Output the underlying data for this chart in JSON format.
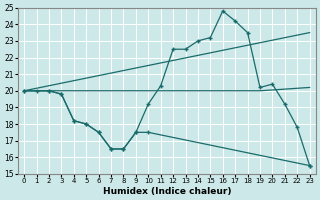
{
  "xlabel": "Humidex (Indice chaleur)",
  "bg_color": "#cce8e8",
  "line_color": "#1a6b6b",
  "grid_color": "#ffffff",
  "xlim": [
    -0.5,
    23.5
  ],
  "ylim": [
    15,
    25
  ],
  "xticks": [
    0,
    1,
    2,
    3,
    4,
    5,
    6,
    7,
    8,
    9,
    10,
    11,
    12,
    13,
    14,
    15,
    16,
    17,
    18,
    19,
    20,
    21,
    22,
    23
  ],
  "yticks": [
    15,
    16,
    17,
    18,
    19,
    20,
    21,
    22,
    23,
    24,
    25
  ],
  "line1_x": [
    0,
    1,
    2,
    3,
    4,
    5,
    6,
    7,
    8,
    9,
    10,
    11,
    12,
    13,
    14,
    15,
    16,
    17,
    18,
    19,
    20,
    21,
    22,
    23
  ],
  "line1_y": [
    20,
    20,
    20,
    19.8,
    18.2,
    18.0,
    17.5,
    16.5,
    16.5,
    17.5,
    19.2,
    20.3,
    22.5,
    22.5,
    23.0,
    23.2,
    24.8,
    24.2,
    23.5,
    20.2,
    20.4,
    19.2,
    17.8,
    15.5
  ],
  "line2_x": [
    0,
    2,
    3,
    4,
    5,
    6,
    7,
    8,
    9,
    10,
    23
  ],
  "line2_y": [
    20,
    20,
    19.8,
    18.2,
    18.0,
    17.5,
    16.5,
    16.5,
    17.5,
    17.5,
    15.5
  ],
  "line3_x": [
    0,
    23
  ],
  "line3_y": [
    20,
    23.5
  ],
  "line4_x": [
    0,
    10,
    19,
    23
  ],
  "line4_y": [
    20,
    20,
    20,
    20.2
  ]
}
